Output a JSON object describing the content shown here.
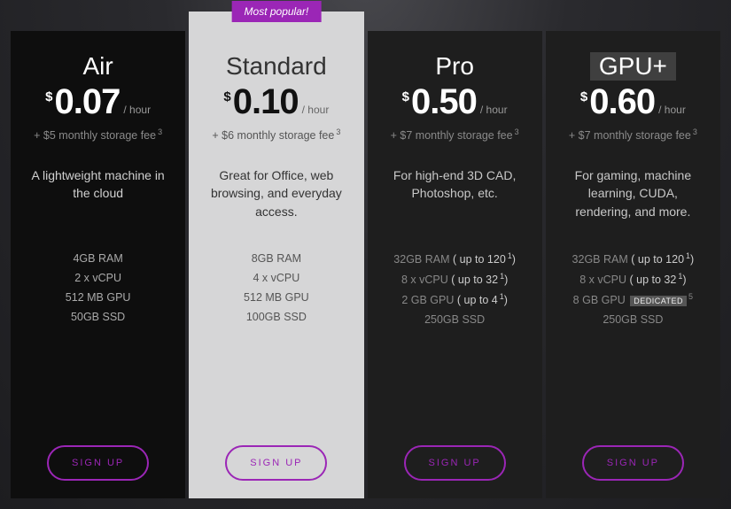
{
  "colors": {
    "accent": "#9b26b6",
    "card_dark_bg": "#0e0e0e",
    "card_semi_bg": "#1e1e1e",
    "card_light_bg": "#d6d6d7",
    "page_bg_center": "#4a4a4f",
    "page_bg_edge": "#1d1d20"
  },
  "badge_text": "Most popular!",
  "currency_symbol": "$",
  "per_unit": "/ hour",
  "fee_footnote": "3",
  "button_label": "SIGN UP",
  "plans": [
    {
      "name": "Air",
      "price": "0.07",
      "storage_fee": "+ $5 monthly storage fee",
      "description": "A lightweight machine in the cloud",
      "specs": [
        {
          "text": "4GB RAM"
        },
        {
          "text": "2 x vCPU"
        },
        {
          "text": "512 MB GPU"
        },
        {
          "text": "50GB SSD"
        }
      ]
    },
    {
      "name": "Standard",
      "price": "0.10",
      "storage_fee": "+ $6 monthly storage fee",
      "description": "Great for Office, web browsing, and everyday access.",
      "specs": [
        {
          "text": "8GB RAM"
        },
        {
          "text": "4 x vCPU"
        },
        {
          "text": "512 MB GPU"
        },
        {
          "text": "100GB SSD"
        }
      ]
    },
    {
      "name": "Pro",
      "price": "0.50",
      "storage_fee": "+ $7 monthly storage fee",
      "description": "For high-end 3D CAD, Photoshop, etc.",
      "specs": [
        {
          "text": "32GB RAM",
          "note": "( up to 120",
          "note_sup": "1",
          "note_close": ")"
        },
        {
          "text": "8 x vCPU",
          "note": "( up to 32",
          "note_sup": "1",
          "note_close": ")"
        },
        {
          "text": "2 GB GPU",
          "note": "( up to 4",
          "note_sup": "1",
          "note_close": ")"
        },
        {
          "text": "250GB SSD"
        }
      ]
    },
    {
      "name": "GPU+",
      "price": "0.60",
      "storage_fee": "+ $7 monthly storage fee",
      "description": "For gaming, machine learning, CUDA, rendering, and more.",
      "specs": [
        {
          "text": "32GB RAM",
          "note": "( up to 120",
          "note_sup": "1",
          "note_close": ")"
        },
        {
          "text": "8 x vCPU",
          "note": "( up to 32",
          "note_sup": "1",
          "note_close": ")"
        },
        {
          "text": "8 GB GPU",
          "tag": "DEDICATED",
          "tag_sup": "5"
        },
        {
          "text": "250GB SSD"
        }
      ]
    }
  ]
}
